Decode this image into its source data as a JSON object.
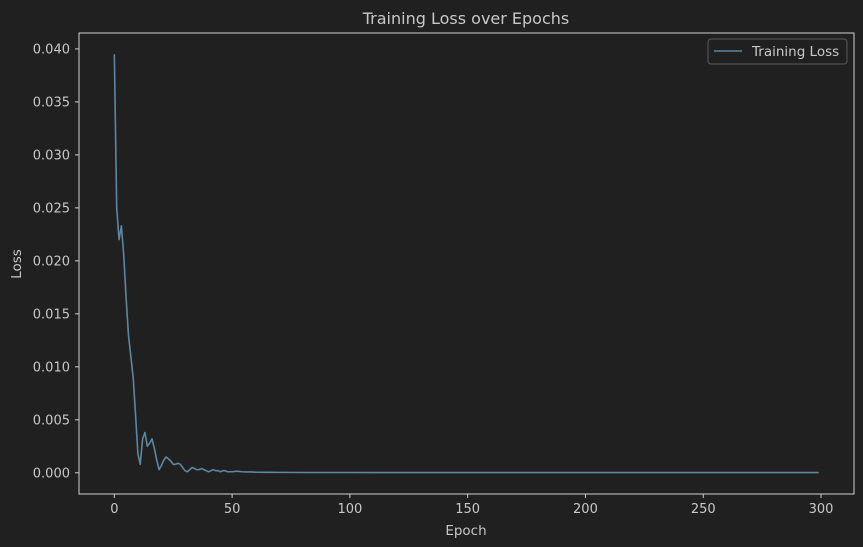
{
  "colors": {
    "background": "#202020",
    "axes": "#d0d0d0",
    "text": "#c8c8c8",
    "series_line": "#5c87a3",
    "legend_border": "#5a5a5a"
  },
  "chart_data": {
    "type": "line",
    "title": "Training Loss over Epochs",
    "xlabel": "Epoch",
    "ylabel": "Loss",
    "xlim": [
      -15,
      314
    ],
    "ylim": [
      -0.002,
      0.0415
    ],
    "xticks": [
      0,
      50,
      100,
      150,
      200,
      250,
      300
    ],
    "xtick_labels": [
      "0",
      "50",
      "100",
      "150",
      "200",
      "250",
      "300"
    ],
    "yticks": [
      0.0,
      0.005,
      0.01,
      0.015,
      0.02,
      0.025,
      0.03,
      0.035,
      0.04
    ],
    "ytick_labels": [
      "0.000",
      "0.005",
      "0.010",
      "0.015",
      "0.020",
      "0.025",
      "0.030",
      "0.035",
      "0.040"
    ],
    "grid": false,
    "legend_position": "top-right",
    "series": [
      {
        "name": "Training Loss",
        "color": "#5c87a3",
        "x": [
          0,
          1,
          2,
          3,
          4,
          5,
          6,
          7,
          8,
          9,
          10,
          11,
          12,
          13,
          14,
          15,
          16,
          17,
          18,
          19,
          20,
          21,
          22,
          23,
          24,
          25,
          26,
          27,
          28,
          29,
          30,
          31,
          32,
          33,
          34,
          35,
          36,
          37,
          38,
          39,
          40,
          41,
          42,
          43,
          44,
          45,
          46,
          47,
          48,
          49,
          50,
          52,
          54,
          56,
          58,
          60,
          65,
          70,
          80,
          100,
          150,
          200,
          250,
          299
        ],
        "y": [
          0.0395,
          0.025,
          0.022,
          0.0233,
          0.0205,
          0.0165,
          0.013,
          0.011,
          0.009,
          0.0055,
          0.0018,
          0.0008,
          0.0032,
          0.0038,
          0.0025,
          0.0028,
          0.0032,
          0.0023,
          0.0012,
          0.0003,
          0.0007,
          0.0012,
          0.0015,
          0.0013,
          0.0011,
          0.0008,
          0.0008,
          0.0009,
          0.0008,
          0.0005,
          0.0002,
          0.0001,
          0.0003,
          0.0005,
          0.0004,
          0.0003,
          0.0003,
          0.0004,
          0.0003,
          0.0002,
          0.0001,
          0.0002,
          0.0003,
          0.0002,
          0.0002,
          0.0001,
          0.0002,
          0.0002,
          0.0001,
          0.0001,
          0.0001,
          0.00015,
          0.0001,
          8e-05,
          8e-05,
          6e-05,
          5e-05,
          4e-05,
          3e-05,
          3e-05,
          2e-05,
          2e-05,
          2e-05,
          2e-05
        ]
      }
    ]
  }
}
